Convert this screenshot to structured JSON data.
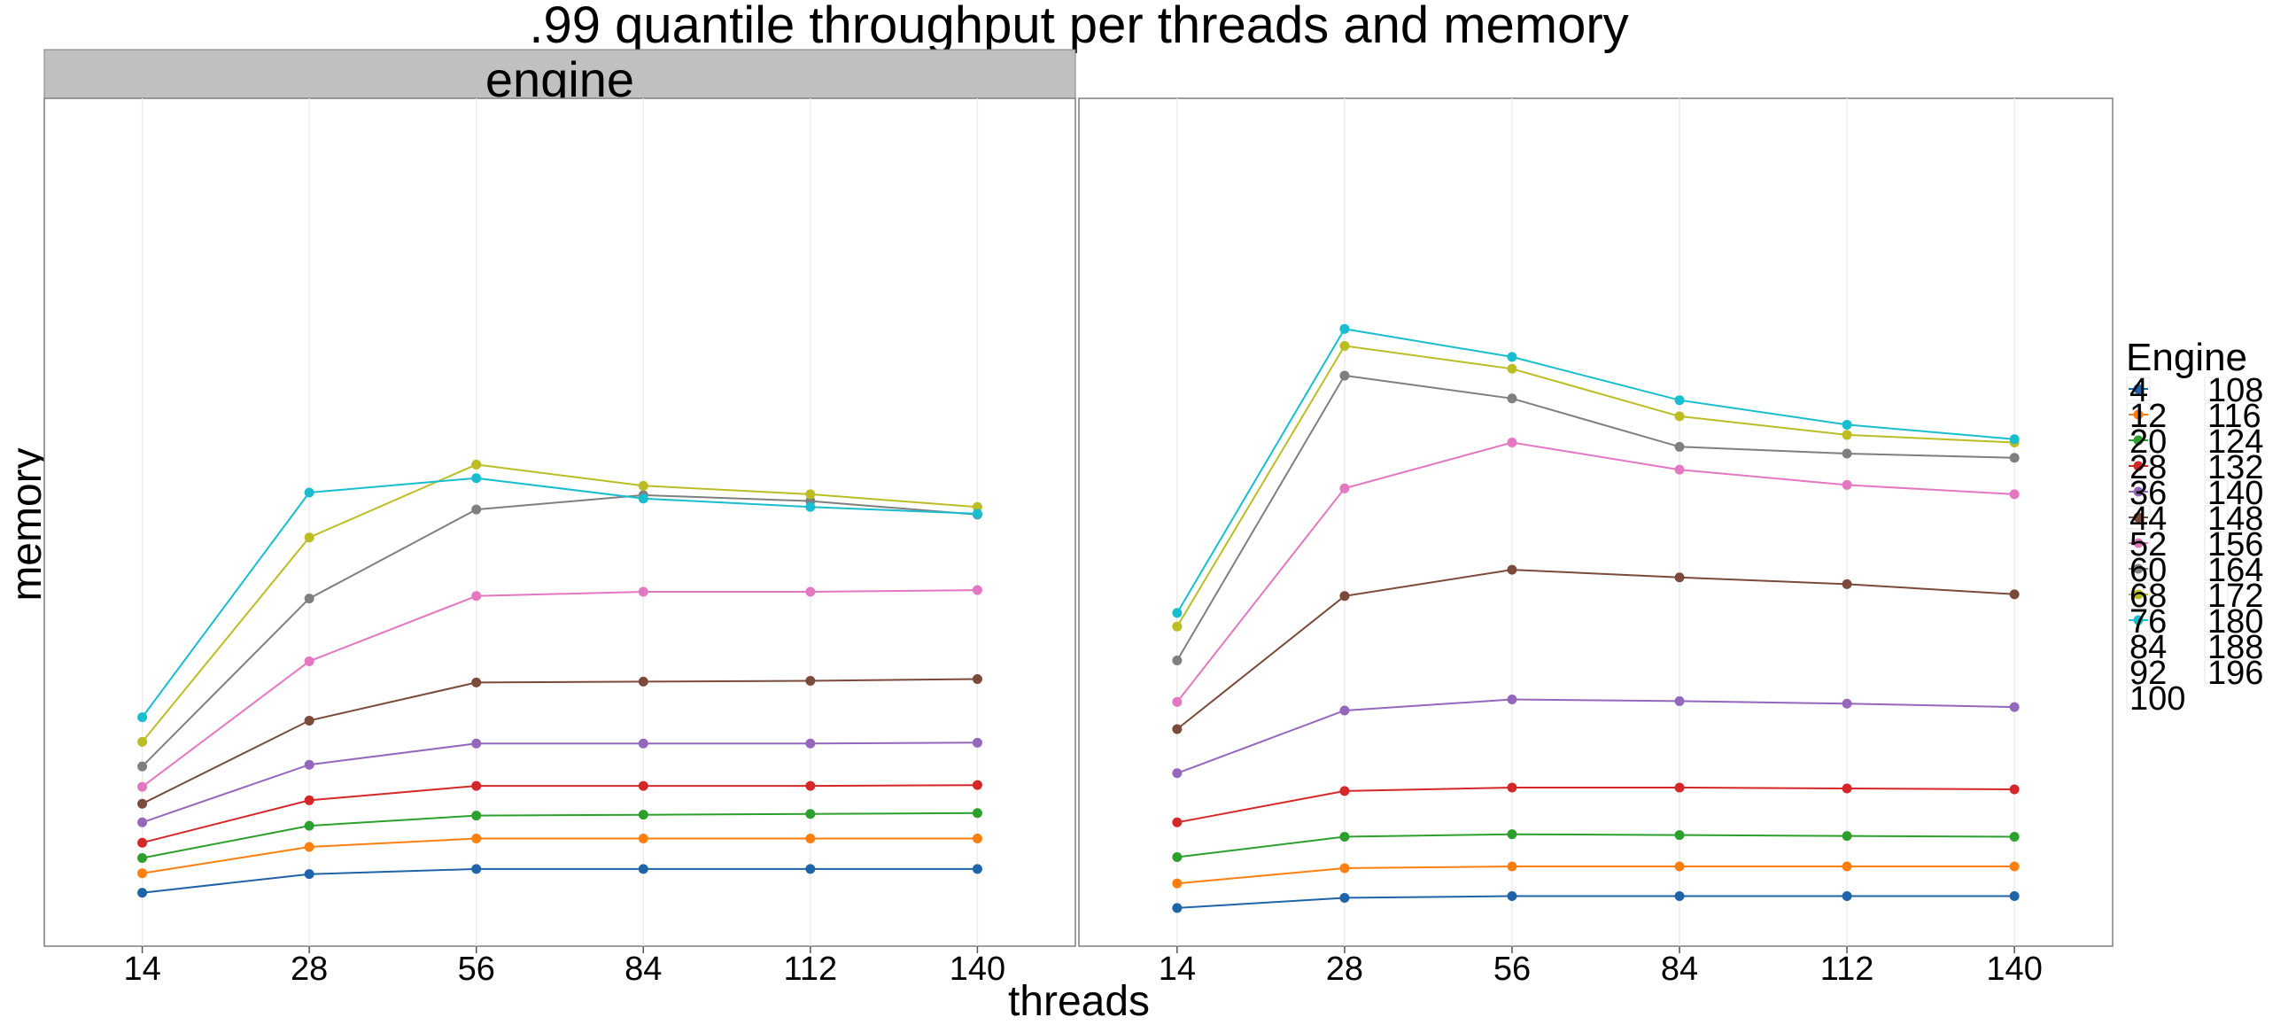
{
  "chart_data": {
    "type": "line",
    "title": ".99 quantile throughput per threads and memory",
    "xlabel": "threads",
    "ylabel": "memory",
    "categories": [
      "14",
      "28",
      "56",
      "84",
      "112",
      "140"
    ],
    "ylim": [
      0,
      100
    ],
    "grid": true,
    "legend": {
      "title": "Engine",
      "position": "right",
      "col1_entries": [
        "4",
        "12",
        "20",
        "28",
        "36",
        "44",
        "52",
        "60",
        "68",
        "76",
        "84",
        "92",
        "100"
      ],
      "col2_entries": [
        "108",
        "116",
        "124",
        "132",
        "140",
        "148",
        "156",
        "164",
        "172",
        "180",
        "188",
        "196"
      ]
    },
    "panels": [
      {
        "strip_label": "engine",
        "series": [
          {
            "name": "4",
            "color": "#1f63a8",
            "values": [
              6.3,
              8.5,
              9.1,
              9.1,
              9.1,
              9.1
            ]
          },
          {
            "name": "12",
            "color": "#ff7f0e",
            "values": [
              8.6,
              11.7,
              12.7,
              12.7,
              12.7,
              12.7
            ]
          },
          {
            "name": "20",
            "color": "#2ca02c",
            "values": [
              10.4,
              14.2,
              15.4,
              15.5,
              15.6,
              15.7
            ]
          },
          {
            "name": "28",
            "color": "#d62728",
            "values": [
              12.2,
              17.2,
              18.9,
              18.9,
              18.9,
              19.0
            ]
          },
          {
            "name": "36",
            "color": "#9467bd",
            "values": [
              14.6,
              21.4,
              23.9,
              23.9,
              23.9,
              24.0
            ]
          },
          {
            "name": "44",
            "color": "#7b4a3a",
            "values": [
              16.8,
              26.6,
              31.1,
              31.2,
              31.3,
              31.5
            ]
          },
          {
            "name": "52",
            "color": "#e377c2",
            "values": [
              18.8,
              33.6,
              41.3,
              41.8,
              41.8,
              42.0
            ]
          },
          {
            "name": "60",
            "color": "#7f7f7f",
            "values": [
              21.2,
              41.0,
              51.5,
              53.2,
              52.5,
              50.9
            ]
          },
          {
            "name": "68",
            "color": "#bcbd22",
            "values": [
              24.1,
              48.2,
              56.8,
              54.3,
              53.3,
              51.8
            ]
          },
          {
            "name": "76",
            "color": "#17becf",
            "values": [
              27.0,
              53.5,
              55.2,
              52.8,
              51.8,
              51.0
            ]
          }
        ]
      },
      {
        "strip_label": "",
        "series": [
          {
            "name": "4",
            "color": "#1f63a8",
            "values": [
              4.5,
              5.7,
              5.9,
              5.9,
              5.9,
              5.9
            ]
          },
          {
            "name": "12",
            "color": "#ff7f0e",
            "values": [
              7.4,
              9.2,
              9.4,
              9.4,
              9.4,
              9.4
            ]
          },
          {
            "name": "20",
            "color": "#2ca02c",
            "values": [
              10.5,
              12.9,
              13.2,
              13.1,
              13.0,
              12.9
            ]
          },
          {
            "name": "28",
            "color": "#d62728",
            "values": [
              14.6,
              18.3,
              18.7,
              18.7,
              18.6,
              18.5
            ]
          },
          {
            "name": "36",
            "color": "#9467bd",
            "values": [
              20.4,
              27.8,
              29.1,
              28.9,
              28.6,
              28.2
            ]
          },
          {
            "name": "44",
            "color": "#7b4a3a",
            "values": [
              25.6,
              41.3,
              44.4,
              43.5,
              42.7,
              41.5
            ]
          },
          {
            "name": "52",
            "color": "#e377c2",
            "values": [
              28.8,
              54.0,
              59.4,
              56.2,
              54.4,
              53.3
            ]
          },
          {
            "name": "60",
            "color": "#7f7f7f",
            "values": [
              33.7,
              67.3,
              64.6,
              58.9,
              58.1,
              57.6
            ]
          },
          {
            "name": "68",
            "color": "#bcbd22",
            "values": [
              37.7,
              70.8,
              68.1,
              62.5,
              60.3,
              59.4
            ]
          },
          {
            "name": "76",
            "color": "#17becf",
            "values": [
              39.3,
              72.8,
              69.5,
              64.4,
              61.5,
              59.8
            ]
          }
        ]
      }
    ]
  }
}
